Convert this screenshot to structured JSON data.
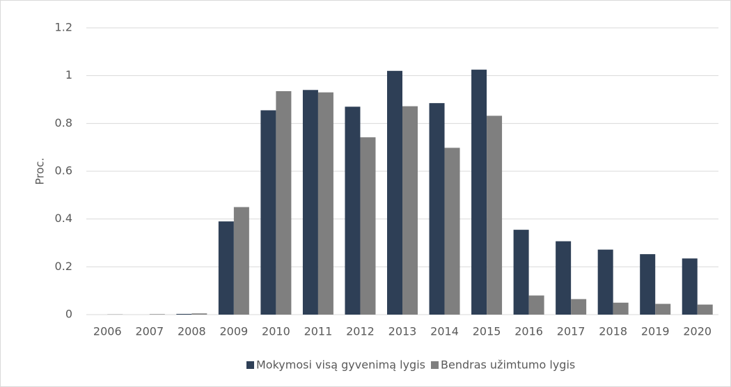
{
  "chart_data": {
    "type": "bar",
    "y_label": "Proc.",
    "categories": [
      "2006",
      "2007",
      "2008",
      "2009",
      "2010",
      "2011",
      "2012",
      "2013",
      "2014",
      "2015",
      "2016",
      "2017",
      "2018",
      "2019",
      "2020"
    ],
    "series": [
      {
        "name": "Mokymosi visą gyvenimą lygis",
        "color": "#2e3f56",
        "values": [
          0,
          0,
          0.003,
          0.39,
          0.855,
          0.94,
          0.87,
          1.02,
          0.885,
          1.025,
          0.355,
          0.307,
          0.272,
          0.253,
          0.235
        ]
      },
      {
        "name": "Bendras užimtumo lygis",
        "color": "#7f7f7f",
        "values": [
          0.001,
          0.002,
          0.005,
          0.45,
          0.935,
          0.93,
          0.742,
          0.872,
          0.698,
          0.832,
          0.08,
          0.065,
          0.05,
          0.045,
          0.042
        ]
      }
    ],
    "ylim": [
      0,
      1.2
    ],
    "yticks": [
      0,
      0.2,
      0.4,
      0.6,
      0.8,
      1,
      1.2
    ],
    "grid": true,
    "legend": "bottom"
  }
}
